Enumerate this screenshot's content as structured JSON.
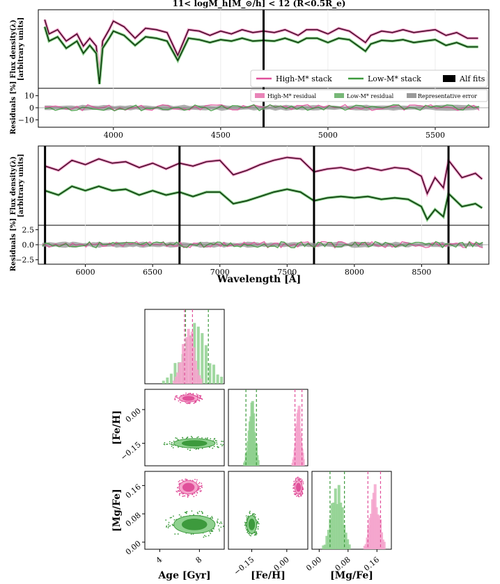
{
  "title": "11< logM_h[M_⊙/h] < 12 (R<0.5R_e)",
  "colors": {
    "high": "#e0509a",
    "high_light": "#f5a5cc",
    "high_line": "#4a0a2c",
    "low": "#3d9a3d",
    "low_light": "#8fd18f",
    "low_line": "#0b3a0b",
    "err": "#9a9a9a"
  },
  "chart_data": [
    {
      "type": "line",
      "panel": "spectrum-top",
      "ylabel_1": "Flux density(λ)",
      "ylabel_2": "[arbitrary units]",
      "xlim": [
        3650,
        5750
      ],
      "xticks": [
        4000,
        4500,
        5000,
        5500
      ],
      "xticklabels": [
        "4000",
        "4500",
        "5000",
        "5500"
      ],
      "fit_boundaries": [
        4700
      ],
      "legend": {
        "high": "High-M* stack",
        "low": "Low-M* stack",
        "fits": "Alf fits"
      },
      "series": [
        {
          "name": "High-M* stack",
          "x": [
            3680,
            3700,
            3740,
            3780,
            3830,
            3860,
            3890,
            3920,
            3935,
            3950,
            3980,
            4000,
            4050,
            4101,
            4150,
            4200,
            4250,
            4300,
            4350,
            4400,
            4450,
            4500,
            4550,
            4600,
            4650,
            4700,
            4750,
            4800,
            4861,
            4900,
            4950,
            5000,
            5050,
            5100,
            5175,
            5200,
            5250,
            5300,
            5350,
            5400,
            5450,
            5500,
            5550,
            5600,
            5650,
            5700
          ],
          "y": [
            0.92,
            0.72,
            0.78,
            0.62,
            0.72,
            0.55,
            0.66,
            0.55,
            0.1,
            0.62,
            0.78,
            0.9,
            0.82,
            0.66,
            0.8,
            0.78,
            0.74,
            0.42,
            0.78,
            0.76,
            0.7,
            0.76,
            0.72,
            0.78,
            0.74,
            0.76,
            0.74,
            0.78,
            0.7,
            0.78,
            0.78,
            0.72,
            0.8,
            0.76,
            0.6,
            0.7,
            0.76,
            0.74,
            0.78,
            0.74,
            0.76,
            0.78,
            0.7,
            0.74,
            0.66,
            0.66
          ]
        },
        {
          "name": "Low-M* stack",
          "x": [
            3680,
            3700,
            3740,
            3780,
            3830,
            3860,
            3890,
            3920,
            3935,
            3950,
            3980,
            4000,
            4050,
            4101,
            4150,
            4200,
            4250,
            4300,
            4350,
            4400,
            4450,
            4500,
            4550,
            4600,
            4650,
            4700,
            4750,
            4800,
            4861,
            4900,
            4950,
            5000,
            5050,
            5100,
            5175,
            5200,
            5250,
            5300,
            5350,
            5400,
            5450,
            5500,
            5550,
            5600,
            5650,
            5700
          ],
          "y": [
            0.82,
            0.62,
            0.68,
            0.52,
            0.62,
            0.45,
            0.56,
            0.45,
            0.02,
            0.52,
            0.66,
            0.76,
            0.7,
            0.56,
            0.68,
            0.66,
            0.62,
            0.35,
            0.66,
            0.64,
            0.6,
            0.64,
            0.62,
            0.66,
            0.62,
            0.63,
            0.62,
            0.66,
            0.6,
            0.66,
            0.66,
            0.6,
            0.66,
            0.64,
            0.48,
            0.58,
            0.63,
            0.62,
            0.64,
            0.6,
            0.62,
            0.64,
            0.56,
            0.6,
            0.54,
            0.54
          ]
        }
      ]
    },
    {
      "type": "area",
      "panel": "residual-top",
      "ylabel": "Residuals [%]",
      "ylim": [
        -15,
        15
      ],
      "yticks": [
        10,
        0,
        -10
      ],
      "yticklabels": [
        "10",
        "0",
        "−10"
      ],
      "legend": {
        "high": "High-M* residual",
        "low": "Low-M* residual",
        "err": "Representative error"
      }
    },
    {
      "type": "line",
      "panel": "spectrum-bottom",
      "ylabel_1": "Flux density(λ)",
      "ylabel_2": "[arbitrary units]",
      "xlim": [
        5650,
        9000
      ],
      "xticks": [
        6000,
        6500,
        7000,
        7500,
        8000,
        8500
      ],
      "xticklabels": [
        "6000",
        "6500",
        "7000",
        "7500",
        "8000",
        "8500"
      ],
      "fit_boundaries": [
        5700,
        6700,
        7700,
        8700
      ],
      "series": [
        {
          "name": "High-M* stack",
          "x": [
            5700,
            5800,
            5900,
            6000,
            6100,
            6200,
            6300,
            6400,
            6500,
            6600,
            6700,
            6800,
            6900,
            7000,
            7100,
            7200,
            7300,
            7400,
            7500,
            7600,
            7700,
            7800,
            7900,
            8000,
            8100,
            8200,
            8300,
            8400,
            8498,
            8542,
            8600,
            8662,
            8700,
            8800,
            8900,
            8950
          ],
          "y": [
            0.78,
            0.72,
            0.86,
            0.8,
            0.88,
            0.82,
            0.84,
            0.76,
            0.82,
            0.74,
            0.82,
            0.78,
            0.84,
            0.86,
            0.66,
            0.72,
            0.8,
            0.86,
            0.9,
            0.88,
            0.7,
            0.74,
            0.76,
            0.72,
            0.76,
            0.72,
            0.76,
            0.74,
            0.64,
            0.4,
            0.62,
            0.48,
            0.86,
            0.62,
            0.68,
            0.6
          ]
        },
        {
          "name": "Low-M* stack",
          "x": [
            5700,
            5800,
            5900,
            6000,
            6100,
            6200,
            6300,
            6400,
            6500,
            6600,
            6700,
            6800,
            6900,
            7000,
            7100,
            7200,
            7300,
            7400,
            7500,
            7600,
            7700,
            7800,
            7900,
            8000,
            8100,
            8200,
            8300,
            8400,
            8498,
            8542,
            8600,
            8662,
            8700,
            8800,
            8900,
            8950
          ],
          "y": [
            0.44,
            0.38,
            0.5,
            0.44,
            0.5,
            0.44,
            0.46,
            0.38,
            0.44,
            0.38,
            0.42,
            0.36,
            0.42,
            0.42,
            0.26,
            0.3,
            0.36,
            0.42,
            0.46,
            0.42,
            0.3,
            0.34,
            0.36,
            0.34,
            0.36,
            0.32,
            0.34,
            0.32,
            0.22,
            0.04,
            0.18,
            0.08,
            0.4,
            0.22,
            0.26,
            0.2
          ]
        }
      ]
    },
    {
      "type": "area",
      "panel": "residual-bottom",
      "ylabel": "Residuals [%]",
      "ylim": [
        -3,
        3
      ],
      "yticks": [
        2.5,
        0,
        -2.5
      ],
      "yticklabels": [
        "2.5",
        "0.0",
        "−2.5"
      ],
      "xlabel": "Wavelength [Å]"
    },
    {
      "type": "scatter",
      "panel": "corner-plot",
      "xlabels": [
        "Age [Gyr]",
        "[Fe/H]",
        "[Mg/Fe]"
      ],
      "age_ticks": [
        4,
        8
      ],
      "age_ticklabels": [
        "4",
        "8"
      ],
      "feh_ticks": [
        -0.15,
        0.0
      ],
      "feh_ticklabels": [
        "−0.15",
        "0.00"
      ],
      "mgfe_ticks": [
        0.0,
        0.08,
        0.16
      ],
      "mgfe_ticklabels": [
        "0.00",
        "0.08",
        "0.16"
      ],
      "feh_yticklabels": [
        "0.00",
        "−0.15"
      ],
      "mgfe_yticklabels": [
        "0.16",
        "0.08",
        "0.00"
      ],
      "high_stack": {
        "age": 6.9,
        "age_ci": [
          6.5,
          7.3
        ],
        "feh": 0.05,
        "feh_ci": [
          0.035,
          0.065
        ],
        "mgfe": 0.155,
        "mgfe_ci": [
          0.135,
          0.17
        ]
      },
      "low_stack": {
        "age": 7.5,
        "age_ci": [
          6.6,
          8.9
        ],
        "feh": -0.15,
        "feh_ci": [
          -0.175,
          -0.13
        ],
        "mgfe": 0.05,
        "mgfe_ci": [
          0.03,
          0.07
        ]
      }
    }
  ]
}
